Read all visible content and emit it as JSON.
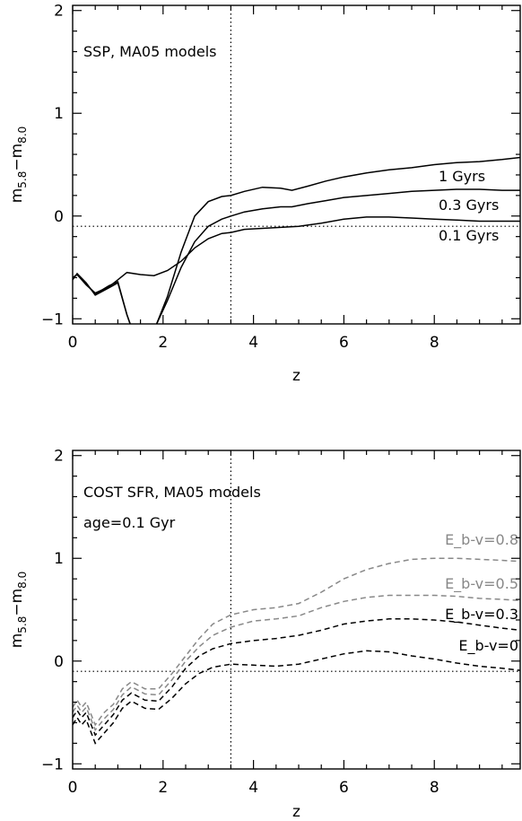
{
  "chart_data": [
    {
      "type": "line",
      "annotations": [
        "SSP, MA05 models"
      ],
      "xlabel": "z",
      "ylabel_main": "m",
      "ylabel_sub1": "5.8",
      "ylabel_mid": "−m",
      "ylabel_sub2": "8.0",
      "xlim": [
        0,
        9.9
      ],
      "ylim": [
        -1.05,
        2.05
      ],
      "xticks": [
        0,
        2,
        4,
        6,
        8
      ],
      "xtick_labels": [
        "0",
        "2",
        "4",
        "6",
        "8"
      ],
      "yticks": [
        -1,
        0,
        1,
        2
      ],
      "ytick_labels": [
        "−1",
        "0",
        "1",
        "2"
      ],
      "grid": false,
      "reference_lines": {
        "x": 3.5,
        "y": -0.1
      },
      "line_color": "#000000",
      "series": [
        {
          "name": "1 Gyrs",
          "x": [
            0,
            0.1,
            0.3,
            0.5,
            0.8,
            1.0,
            1.2,
            1.28,
            1.85,
            2.1,
            2.4,
            2.7,
            3.0,
            3.3,
            3.5,
            3.8,
            4.2,
            4.6,
            4.85,
            5.2,
            5.6,
            6.0,
            6.5,
            7.0,
            7.5,
            8.0,
            8.5,
            9.0,
            9.5,
            9.9
          ],
          "y": [
            -0.62,
            -0.56,
            -0.65,
            -0.77,
            -0.7,
            -0.65,
            -0.96,
            -1.06,
            -1.06,
            -0.78,
            -0.35,
            0.0,
            0.14,
            0.19,
            0.2,
            0.24,
            0.28,
            0.27,
            0.25,
            0.29,
            0.34,
            0.38,
            0.42,
            0.45,
            0.47,
            0.5,
            0.52,
            0.53,
            0.55,
            0.57
          ]
        },
        {
          "name": "0.3 Gyrs",
          "x": [
            0,
            0.1,
            0.3,
            0.5,
            0.8,
            1.0,
            1.2,
            1.28,
            1.85,
            2.1,
            2.4,
            2.7,
            3.0,
            3.3,
            3.5,
            3.8,
            4.2,
            4.6,
            4.85,
            5.2,
            5.6,
            6.0,
            6.5,
            7.0,
            7.5,
            8.0,
            8.5,
            9.0,
            9.5,
            9.9
          ],
          "y": [
            -0.6,
            -0.57,
            -0.66,
            -0.76,
            -0.68,
            -0.64,
            -0.96,
            -1.06,
            -1.06,
            -0.82,
            -0.5,
            -0.25,
            -0.1,
            -0.03,
            0.0,
            0.04,
            0.07,
            0.09,
            0.09,
            0.12,
            0.15,
            0.18,
            0.2,
            0.22,
            0.24,
            0.25,
            0.26,
            0.26,
            0.25,
            0.25
          ]
        },
        {
          "name": "0.1 Gyrs",
          "x": [
            0,
            0.1,
            0.3,
            0.5,
            0.8,
            1.0,
            1.2,
            1.5,
            1.8,
            2.1,
            2.4,
            2.7,
            3.0,
            3.3,
            3.5,
            3.8,
            4.2,
            4.6,
            5.0,
            5.5,
            6.0,
            6.5,
            7.0,
            7.5,
            8.0,
            8.5,
            9.0,
            9.5,
            9.9
          ],
          "y": [
            -0.6,
            -0.57,
            -0.67,
            -0.75,
            -0.69,
            -0.62,
            -0.55,
            -0.57,
            -0.58,
            -0.53,
            -0.44,
            -0.31,
            -0.22,
            -0.17,
            -0.16,
            -0.13,
            -0.12,
            -0.11,
            -0.1,
            -0.07,
            -0.03,
            -0.01,
            -0.01,
            -0.02,
            -0.03,
            -0.04,
            -0.05,
            -0.05,
            -0.05
          ]
        }
      ]
    },
    {
      "type": "line",
      "annotations": [
        "COST SFR, MA05 models",
        "age=0.1 Gyr"
      ],
      "xlabel": "z",
      "ylabel_main": "m",
      "ylabel_sub1": "5.8",
      "ylabel_mid": "−m",
      "ylabel_sub2": "8.0",
      "xlim": [
        0,
        9.9
      ],
      "ylim": [
        -1.05,
        2.05
      ],
      "xticks": [
        0,
        2,
        4,
        6,
        8
      ],
      "xtick_labels": [
        "0",
        "2",
        "4",
        "6",
        "8"
      ],
      "yticks": [
        -1,
        0,
        1,
        2
      ],
      "ytick_labels": [
        "−1",
        "0",
        "1",
        "2"
      ],
      "grid": false,
      "reference_lines": {
        "x": 3.5,
        "y": -0.1
      },
      "line_style": "dashed",
      "series": [
        {
          "name": "E_b-v=0.8",
          "color": "#888888",
          "x": [
            0,
            0.1,
            0.2,
            0.3,
            0.5,
            0.7,
            0.9,
            1.1,
            1.3,
            1.6,
            1.9,
            2.2,
            2.5,
            2.8,
            3.1,
            3.5,
            4.0,
            4.5,
            5.0,
            5.5,
            6.0,
            6.5,
            7.0,
            7.5,
            8.0,
            8.5,
            9.0,
            9.5,
            9.9
          ],
          "y": [
            -0.45,
            -0.38,
            -0.45,
            -0.4,
            -0.62,
            -0.5,
            -0.42,
            -0.27,
            -0.2,
            -0.27,
            -0.27,
            -0.12,
            0.05,
            0.22,
            0.36,
            0.45,
            0.5,
            0.52,
            0.56,
            0.67,
            0.8,
            0.89,
            0.95,
            0.99,
            1.0,
            1.0,
            0.99,
            0.98,
            0.97
          ]
        },
        {
          "name": "E_b-v=0.5",
          "color": "#888888",
          "x": [
            0,
            0.1,
            0.2,
            0.3,
            0.5,
            0.7,
            0.9,
            1.1,
            1.3,
            1.6,
            1.9,
            2.2,
            2.5,
            2.8,
            3.1,
            3.5,
            4.0,
            4.5,
            5.0,
            5.5,
            6.0,
            6.5,
            7.0,
            7.5,
            8.0,
            8.5,
            9.0,
            9.5,
            9.9
          ],
          "y": [
            -0.5,
            -0.43,
            -0.5,
            -0.45,
            -0.67,
            -0.56,
            -0.47,
            -0.33,
            -0.25,
            -0.32,
            -0.33,
            -0.18,
            0.0,
            0.14,
            0.25,
            0.33,
            0.39,
            0.41,
            0.44,
            0.52,
            0.58,
            0.62,
            0.64,
            0.64,
            0.64,
            0.63,
            0.61,
            0.6,
            0.59
          ]
        },
        {
          "name": "E_b-v=0.3",
          "color": "#000000",
          "x": [
            0,
            0.1,
            0.2,
            0.3,
            0.5,
            0.7,
            0.9,
            1.1,
            1.3,
            1.6,
            1.9,
            2.2,
            2.5,
            2.8,
            3.1,
            3.5,
            4.0,
            4.5,
            5.0,
            5.5,
            6.0,
            6.5,
            7.0,
            7.5,
            8.0,
            8.5,
            9.0,
            9.5,
            9.9
          ],
          "y": [
            -0.55,
            -0.48,
            -0.55,
            -0.5,
            -0.72,
            -0.62,
            -0.52,
            -0.38,
            -0.31,
            -0.38,
            -0.39,
            -0.25,
            -0.07,
            0.05,
            0.12,
            0.17,
            0.2,
            0.22,
            0.25,
            0.3,
            0.36,
            0.39,
            0.41,
            0.41,
            0.4,
            0.38,
            0.35,
            0.32,
            0.3
          ]
        },
        {
          "name": "E_b-v=0",
          "color": "#000000",
          "x": [
            0,
            0.1,
            0.2,
            0.3,
            0.5,
            0.7,
            0.9,
            1.1,
            1.3,
            1.6,
            1.9,
            2.2,
            2.5,
            2.8,
            3.1,
            3.5,
            4.0,
            4.5,
            5.0,
            5.5,
            6.0,
            6.5,
            7.0,
            7.5,
            8.0,
            8.5,
            9.0,
            9.5,
            9.9
          ],
          "y": [
            -0.62,
            -0.55,
            -0.62,
            -0.57,
            -0.8,
            -0.7,
            -0.6,
            -0.46,
            -0.39,
            -0.46,
            -0.47,
            -0.36,
            -0.22,
            -0.12,
            -0.06,
            -0.03,
            -0.04,
            -0.05,
            -0.03,
            0.02,
            0.07,
            0.1,
            0.09,
            0.05,
            0.02,
            -0.02,
            -0.05,
            -0.07,
            -0.09
          ]
        }
      ]
    }
  ]
}
